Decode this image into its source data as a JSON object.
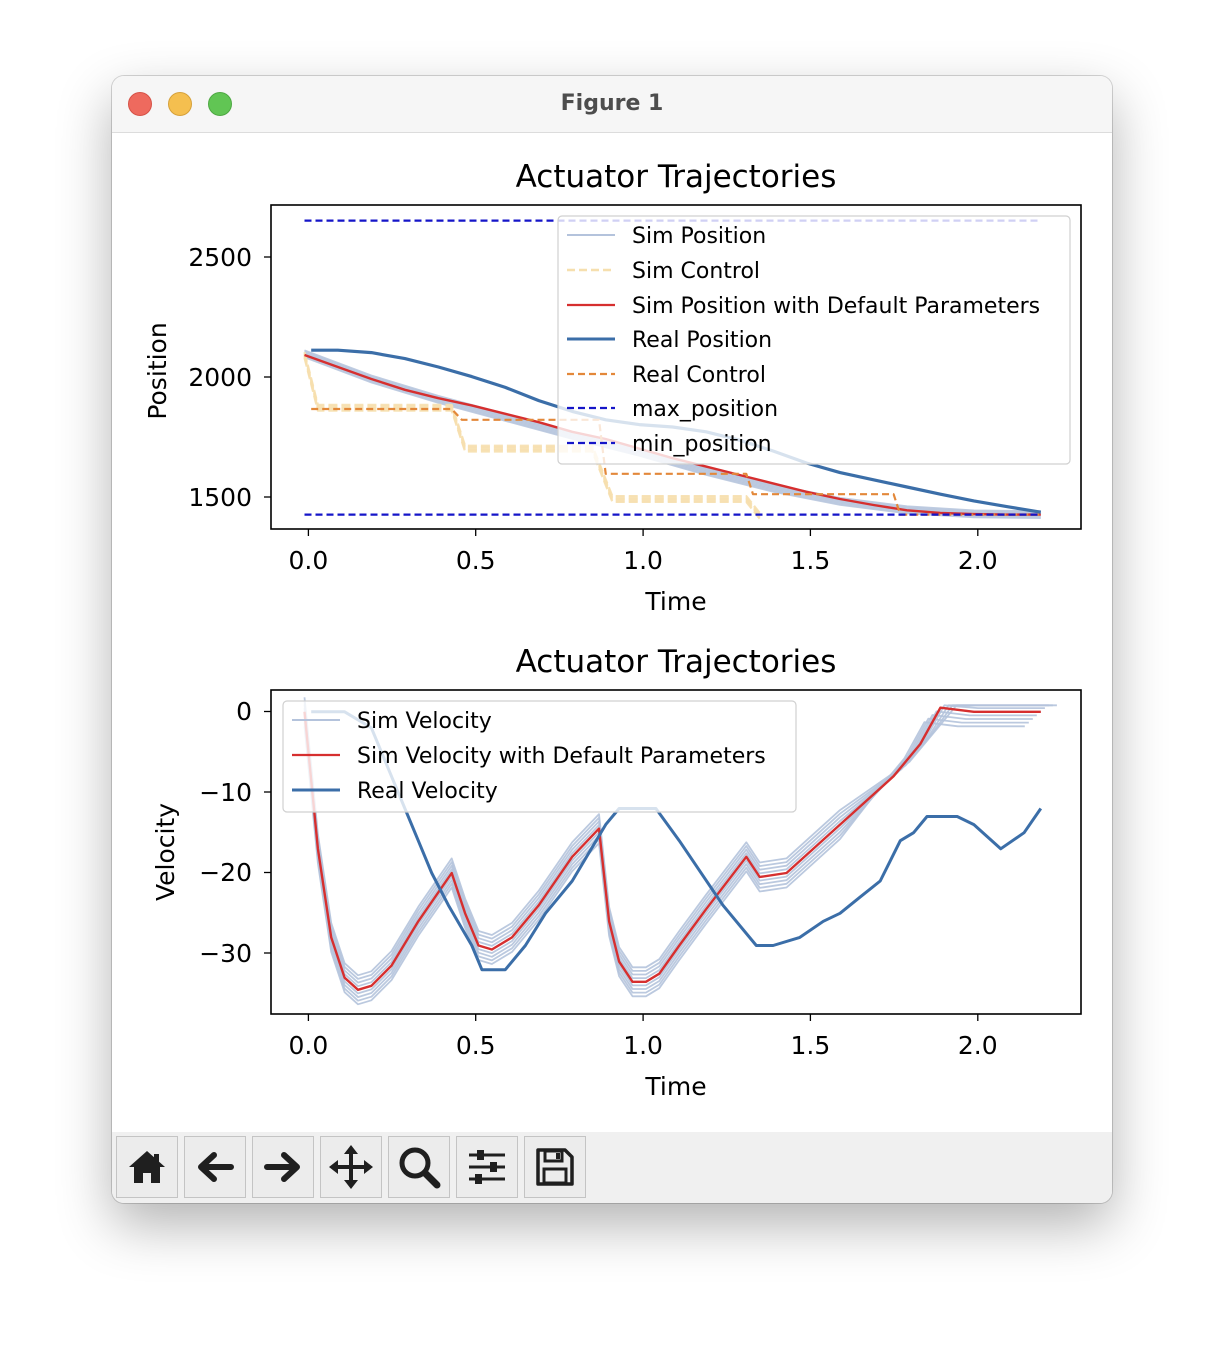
{
  "window": {
    "title": "Figure 1"
  },
  "toolbar": {
    "buttons": [
      {
        "name": "home-button",
        "icon": "home-icon"
      },
      {
        "name": "back-button",
        "icon": "arrow-left-icon"
      },
      {
        "name": "forward-button",
        "icon": "arrow-right-icon"
      },
      {
        "name": "pan-button",
        "icon": "move-icon"
      },
      {
        "name": "zoom-button",
        "icon": "search-icon"
      },
      {
        "name": "configure-subplots-button",
        "icon": "sliders-icon"
      },
      {
        "name": "save-button",
        "icon": "floppy-disk-icon"
      }
    ]
  },
  "colors": {
    "sim": "#b4c3dc",
    "sim_control": "#f6dfae",
    "default": "#d62f2f",
    "real": "#3b6ea8",
    "real_control": "#e3883a",
    "limits": "#1515c8"
  },
  "chart_data": [
    {
      "type": "line",
      "title": "Actuator Trajectories",
      "xlabel": "Time",
      "ylabel": "Position",
      "xlim": [
        -0.1,
        2.32
      ],
      "ylim": [
        1365,
        2715
      ],
      "xticks": [
        "0.0",
        "0.5",
        "1.0",
        "1.5",
        "2.0"
      ],
      "yticks": [
        "1500",
        "2000",
        "2500"
      ],
      "legend_position": "top-right",
      "legend": [
        "Sim Position",
        "Sim Control",
        "Sim Position with Default Parameters",
        "Real Position",
        "Real Control",
        "max_position",
        "min_position"
      ],
      "series": [
        {
          "name": "Sim Position",
          "x": [
            0.0,
            0.2,
            0.4,
            0.6,
            0.8,
            1.0,
            1.2,
            1.4,
            1.6,
            1.8,
            2.0,
            2.2
          ],
          "y": [
            2095,
            1990,
            1905,
            1830,
            1755,
            1685,
            1605,
            1535,
            1480,
            1445,
            1428,
            1425
          ]
        },
        {
          "name": "Sim Control",
          "x": [
            0.0,
            0.04,
            0.44,
            0.48,
            0.86,
            0.92,
            1.32,
            1.36
          ],
          "y": [
            2090,
            1870,
            1870,
            1700,
            1700,
            1490,
            1490,
            1420
          ]
        },
        {
          "name": "Sim Position with Default Parameters",
          "x": [
            0.0,
            0.1,
            0.2,
            0.3,
            0.4,
            0.5,
            0.6,
            0.7,
            0.8,
            0.9,
            1.0,
            1.1,
            1.2,
            1.3,
            1.4,
            1.5,
            1.6,
            1.7,
            1.8,
            1.9,
            2.0,
            2.1,
            2.2
          ],
          "y": [
            2090,
            2040,
            1990,
            1945,
            1910,
            1880,
            1845,
            1810,
            1770,
            1740,
            1700,
            1660,
            1625,
            1590,
            1555,
            1520,
            1490,
            1465,
            1443,
            1432,
            1427,
            1425,
            1425
          ]
        },
        {
          "name": "Real Position",
          "x": [
            0.02,
            0.1,
            0.2,
            0.3,
            0.4,
            0.5,
            0.6,
            0.7,
            0.8,
            0.9,
            1.0,
            1.1,
            1.2,
            1.3,
            1.4,
            1.5,
            1.6,
            1.7,
            1.8,
            1.9,
            2.0,
            2.1,
            2.2
          ],
          "y": [
            2110,
            2110,
            2100,
            2075,
            2040,
            2000,
            1955,
            1900,
            1855,
            1820,
            1800,
            1790,
            1770,
            1735,
            1690,
            1640,
            1600,
            1570,
            1540,
            1510,
            1482,
            1458,
            1435
          ]
        },
        {
          "name": "Real Control",
          "x": [
            0.02,
            0.44,
            0.47,
            0.88,
            0.9,
            1.32,
            1.34,
            1.76,
            1.78,
            2.2
          ],
          "y": [
            1865,
            1865,
            1820,
            1820,
            1595,
            1595,
            1510,
            1510,
            1425,
            1425
          ]
        },
        {
          "name": "max_position",
          "x": [
            0.0,
            2.2
          ],
          "y": [
            2650,
            2650
          ]
        },
        {
          "name": "min_position",
          "x": [
            0.0,
            2.2
          ],
          "y": [
            1425,
            1425
          ]
        }
      ]
    },
    {
      "type": "line",
      "title": "Actuator Trajectories",
      "xlabel": "Time",
      "ylabel": "Velocity",
      "xlim": [
        -0.1,
        2.32
      ],
      "ylim": [
        -37.5,
        2.7
      ],
      "xticks": [
        "0.0",
        "0.5",
        "1.0",
        "1.5",
        "2.0"
      ],
      "yticks": [
        "0",
        "−10",
        "−20",
        "−30"
      ],
      "legend_position": "top-left",
      "legend": [
        "Sim Velocity",
        "Sim Velocity with Default Parameters",
        "Real Velocity"
      ],
      "series": [
        {
          "name": "Sim Velocity",
          "x": [
            0.0,
            0.04,
            0.08,
            0.12,
            0.16,
            0.2,
            0.26,
            0.34,
            0.44,
            0.48,
            0.52,
            0.56,
            0.62,
            0.7,
            0.8,
            0.88,
            0.91,
            0.94,
            0.98,
            1.02,
            1.06,
            1.12,
            1.2,
            1.32,
            1.36,
            1.44,
            1.6,
            1.76,
            1.84,
            1.9,
            2.0,
            2.2
          ],
          "y": [
            0,
            -17,
            -28,
            -33,
            -34.5,
            -34,
            -31.5,
            -26,
            -20,
            -25,
            -29,
            -29.5,
            -28,
            -24,
            -18,
            -14.5,
            -26,
            -31,
            -33.5,
            -33.5,
            -32.5,
            -29,
            -24.5,
            -18,
            -20.5,
            -20,
            -14,
            -8,
            -4,
            0.5,
            0,
            0
          ]
        },
        {
          "name": "Sim Velocity with Default Parameters",
          "x": [
            0.0,
            0.04,
            0.08,
            0.12,
            0.16,
            0.2,
            0.26,
            0.34,
            0.44,
            0.48,
            0.52,
            0.56,
            0.62,
            0.7,
            0.8,
            0.88,
            0.91,
            0.94,
            0.98,
            1.02,
            1.06,
            1.12,
            1.2,
            1.32,
            1.36,
            1.44,
            1.6,
            1.76,
            1.84,
            1.9,
            2.0,
            2.2
          ],
          "y": [
            0,
            -17,
            -28,
            -33,
            -34.5,
            -34,
            -31.5,
            -26,
            -20,
            -25,
            -29,
            -29.5,
            -28,
            -24,
            -18,
            -14.5,
            -26,
            -31,
            -33.5,
            -33.5,
            -32.5,
            -29,
            -24.5,
            -18,
            -20.5,
            -20,
            -14,
            -8,
            -4,
            0.5,
            0,
            0
          ]
        },
        {
          "name": "Real Velocity",
          "x": [
            0.02,
            0.12,
            0.2,
            0.25,
            0.3,
            0.34,
            0.38,
            0.43,
            0.5,
            0.53,
            0.6,
            0.66,
            0.72,
            0.8,
            0.9,
            0.94,
            1.05,
            1.12,
            1.25,
            1.35,
            1.4,
            1.48,
            1.55,
            1.6,
            1.66,
            1.72,
            1.78,
            1.82,
            1.86,
            1.95,
            2.0,
            2.08,
            2.15,
            2.2
          ],
          "y": [
            0,
            0,
            -2,
            -7,
            -12,
            -16,
            -20,
            -24,
            -29,
            -32,
            -32,
            -29,
            -25,
            -21,
            -14,
            -12,
            -12,
            -16,
            -24,
            -29,
            -29,
            -28,
            -26,
            -25,
            -23,
            -21,
            -16,
            -15,
            -13,
            -13,
            -14,
            -17,
            -15,
            -12
          ]
        }
      ]
    }
  ]
}
